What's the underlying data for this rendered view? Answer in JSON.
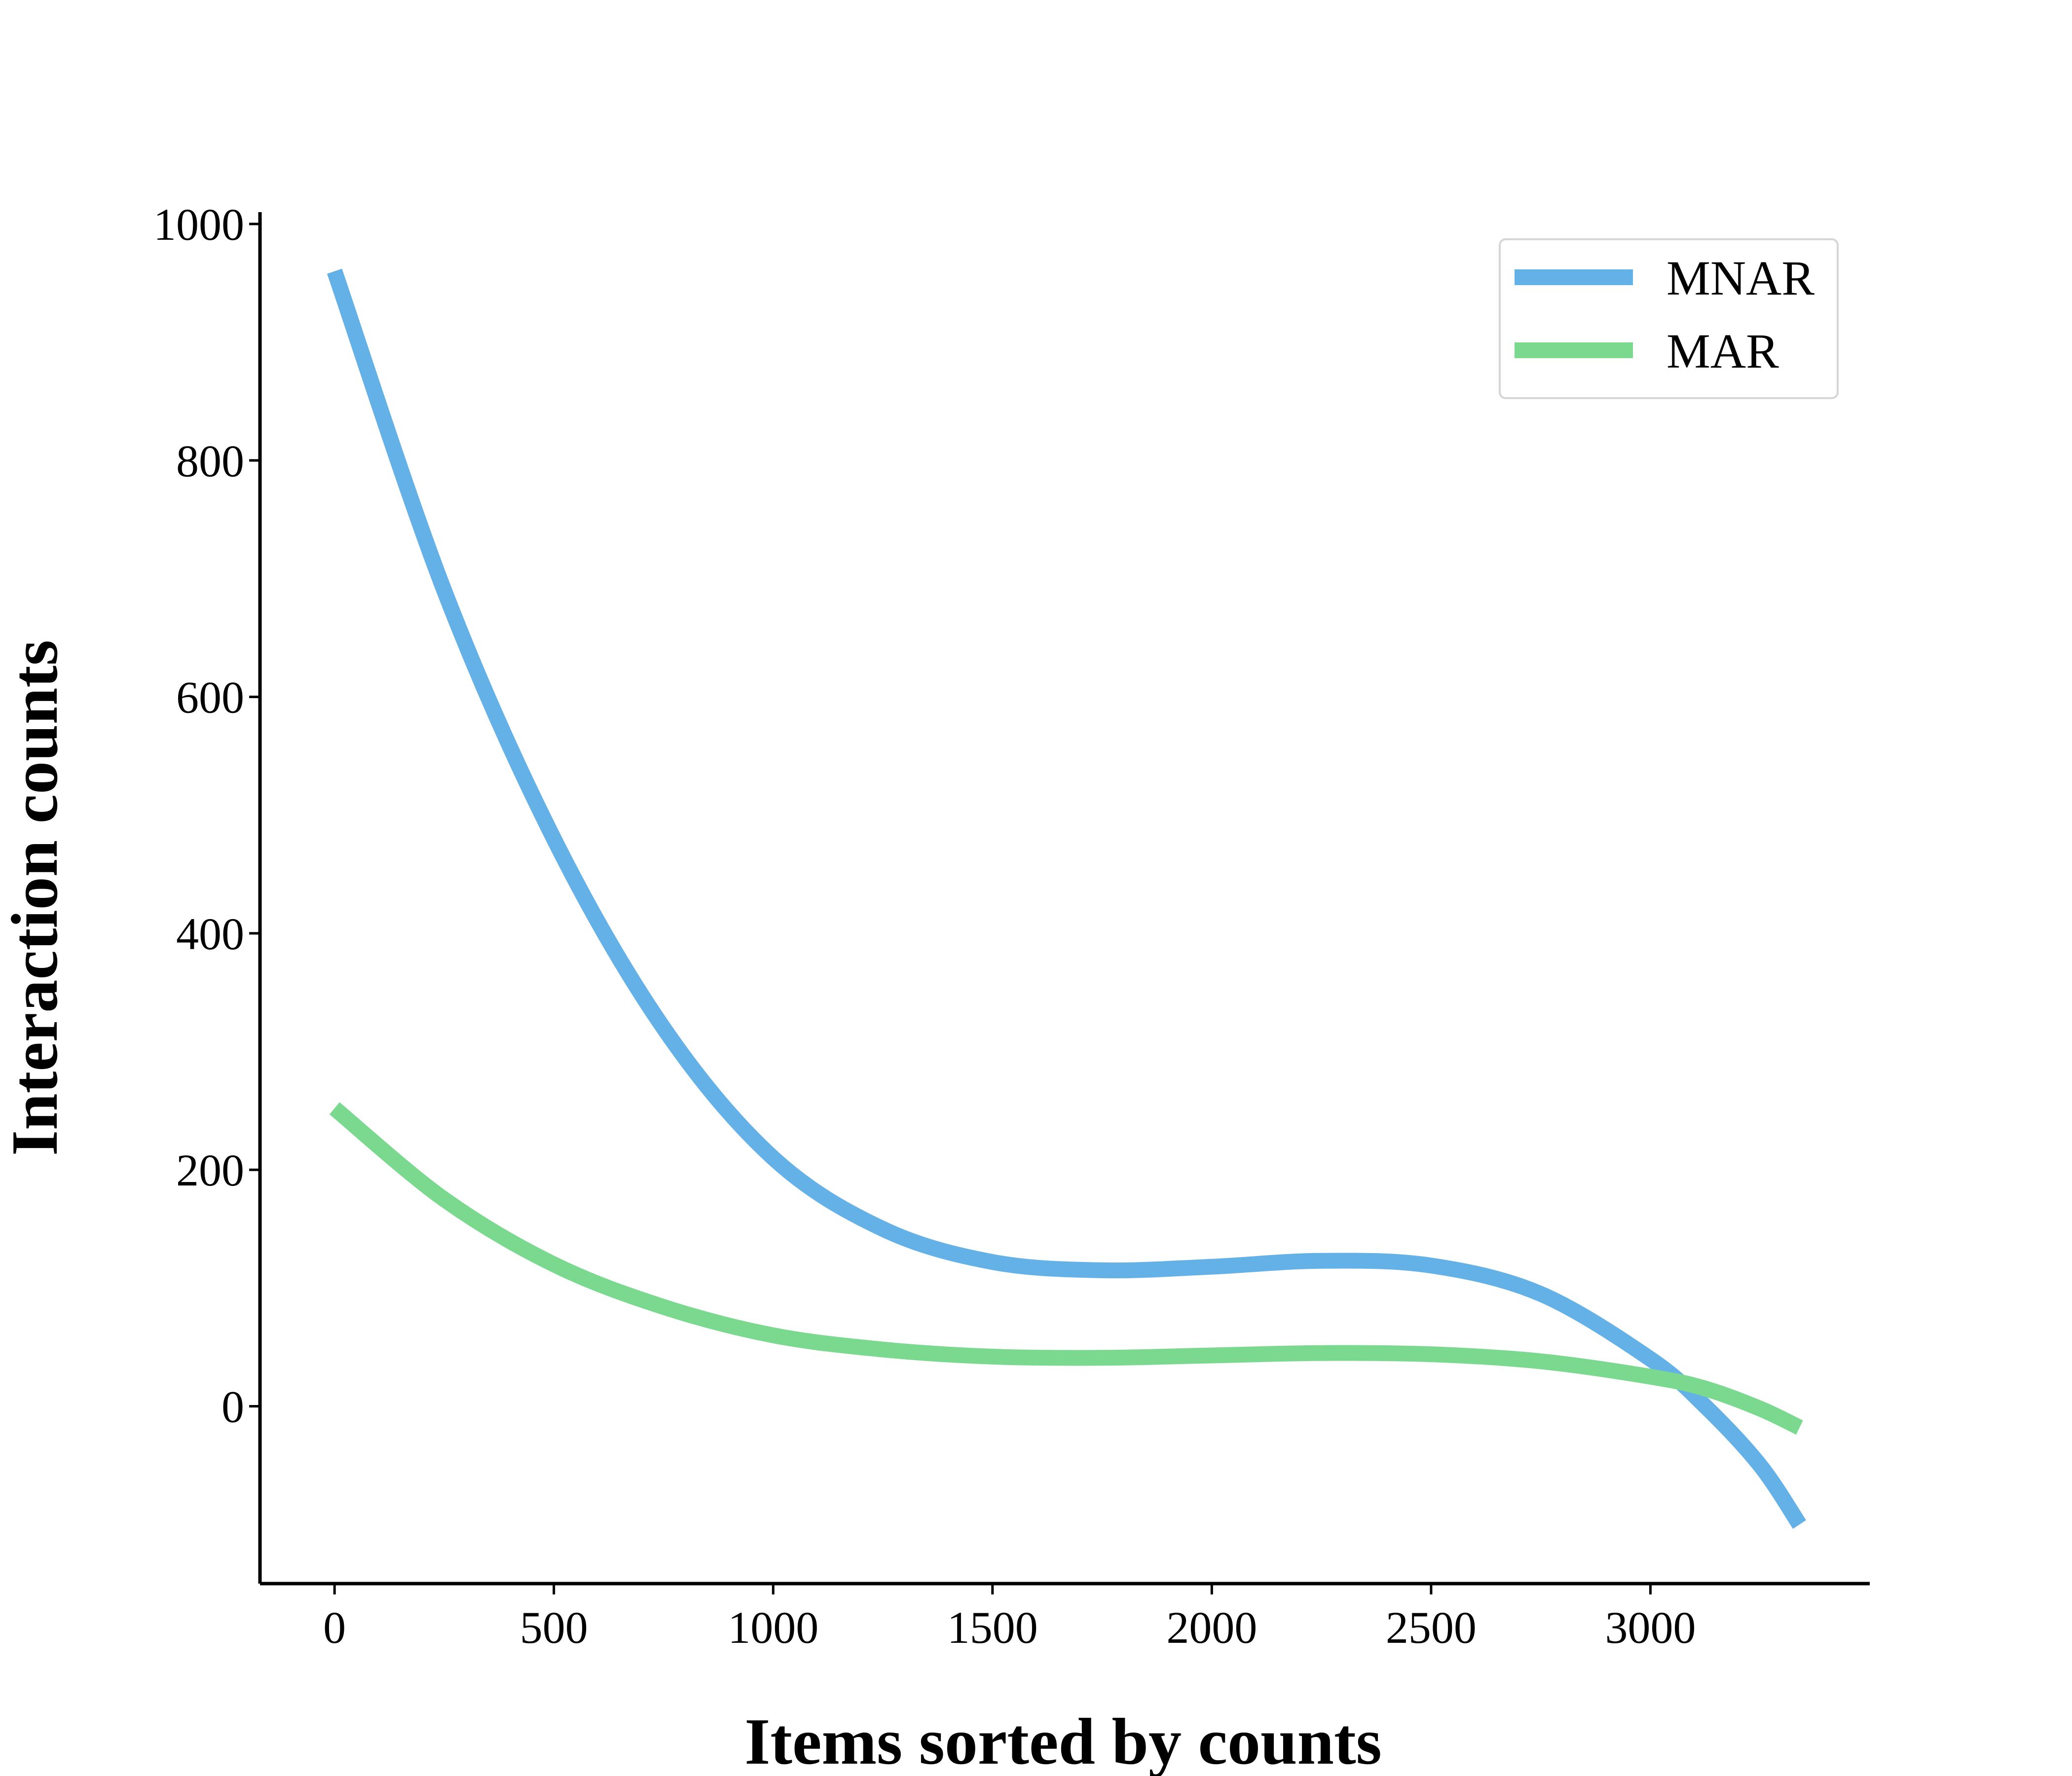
{
  "chart_data": {
    "type": "line",
    "xlabel": "Items sorted by counts",
    "ylabel": "Interaction counts",
    "xlim": [
      -170,
      3500
    ],
    "ylim": [
      -150,
      1010
    ],
    "xticks": [
      0,
      500,
      1000,
      1500,
      2000,
      2500,
      3000
    ],
    "yticks": [
      0,
      200,
      400,
      600,
      800,
      1000
    ],
    "grid": false,
    "legend_position": "top-right",
    "series": [
      {
        "name": "MNAR",
        "color": "#64b1e8",
        "x": [
          0,
          250,
          500,
          750,
          1000,
          1250,
          1500,
          1750,
          2000,
          2250,
          2500,
          2750,
          3000,
          3125,
          3250,
          3340
        ],
        "y": [
          960,
          690,
          480,
          320,
          210,
          150,
          122,
          115,
          118,
          123,
          119,
          95,
          40,
          0,
          -50,
          -100
        ]
      },
      {
        "name": "MAR",
        "color": "#7ad98f",
        "x": [
          0,
          250,
          500,
          750,
          1000,
          1250,
          1500,
          1750,
          2000,
          2250,
          2500,
          2750,
          3000,
          3125,
          3250,
          3340
        ],
        "y": [
          252,
          175,
          120,
          84,
          60,
          48,
          42,
          41,
          43,
          45,
          44,
          38,
          25,
          15,
          -2,
          -18
        ]
      }
    ]
  }
}
